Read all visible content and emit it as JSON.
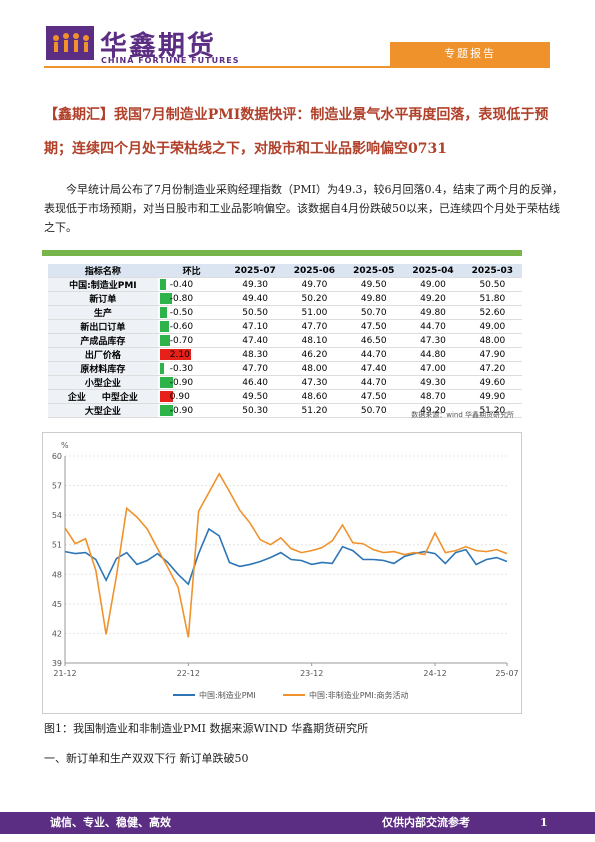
{
  "header": {
    "brand": "华鑫期货",
    "brand_en": "CHINA FORTUNE FUTURES",
    "tag": "专题报告"
  },
  "title": "【鑫期汇】我国7月制造业PMI数据快评：制造业景气水平再度回落，表现低于预期；连续四个月处于荣枯线之下，对股市和工业品影响偏空0731",
  "paragraph": "今早统计局公布了7月份制造业采购经理指数（PMI）为49.3，较6月回落0.4，结束了两个月的反弹，表现低于市场预期，对当日股市和工业品影响偏空。该数据自4月份跌破50以来，已连续四个月处于荣枯线之下。",
  "table": {
    "header": [
      "指标名称",
      "环比",
      "2025-07",
      "2025-06",
      "2025-05",
      "2025-04",
      "2025-03"
    ],
    "group": "企业",
    "rows": [
      [
        "中国:制造业PMI",
        "-0.40",
        "49.30",
        "49.70",
        "49.50",
        "49.00",
        "50.50"
      ],
      [
        "新订单",
        "-0.80",
        "49.40",
        "50.20",
        "49.80",
        "49.20",
        "51.80"
      ],
      [
        "生产",
        "-0.50",
        "50.50",
        "51.00",
        "50.70",
        "49.80",
        "52.60"
      ],
      [
        "新出口订单",
        "-0.60",
        "47.10",
        "47.70",
        "47.50",
        "44.70",
        "49.00"
      ],
      [
        "产成品库存",
        "-0.70",
        "47.40",
        "48.10",
        "46.50",
        "47.30",
        "48.00"
      ],
      [
        "出厂价格",
        "2.10",
        "48.30",
        "46.20",
        "44.70",
        "44.80",
        "47.90"
      ],
      [
        "原材料库存",
        "-0.30",
        "47.70",
        "48.00",
        "47.40",
        "47.00",
        "47.20"
      ],
      [
        "小型企业",
        "-0.90",
        "46.40",
        "47.30",
        "44.70",
        "49.30",
        "49.60"
      ],
      [
        "中型企业",
        "0.90",
        "49.50",
        "48.60",
        "47.50",
        "48.70",
        "49.90"
      ],
      [
        "大型企业",
        "-0.90",
        "50.30",
        "51.20",
        "50.70",
        "49.20",
        "51.20"
      ]
    ],
    "source": "数据来源：wind 华鑫期货研究所"
  },
  "chart": {
    "type": "line",
    "y_unit": "%",
    "x": [
      "21-12",
      null,
      null,
      null,
      null,
      null,
      null,
      null,
      null,
      null,
      null,
      null,
      "22-12",
      null,
      null,
      null,
      null,
      null,
      null,
      null,
      null,
      null,
      null,
      null,
      "23-12",
      null,
      null,
      null,
      null,
      null,
      null,
      null,
      null,
      null,
      null,
      null,
      "24-12",
      null,
      null,
      null,
      null,
      null,
      null,
      "25-07"
    ],
    "ylim": [
      39,
      60
    ],
    "yticks": [
      39,
      42,
      45,
      48,
      51,
      54,
      57,
      60
    ],
    "series": [
      {
        "name": "中国:制造业PMI",
        "color": "#2e75b6",
        "values": [
          50.3,
          50.1,
          50.2,
          49.5,
          47.4,
          49.6,
          50.2,
          49.0,
          49.4,
          50.1,
          49.2,
          48.0,
          47.0,
          50.1,
          52.6,
          51.9,
          49.2,
          48.8,
          49.0,
          49.3,
          49.7,
          50.2,
          49.5,
          49.4,
          49.0,
          49.2,
          49.1,
          50.8,
          50.4,
          49.5,
          49.5,
          49.4,
          49.1,
          49.8,
          50.1,
          50.3,
          50.1,
          49.1,
          50.2,
          50.5,
          49.0,
          49.5,
          49.7,
          49.3
        ]
      },
      {
        "name": "中国:非制造业PMI:商务活动",
        "color": "#f0922b",
        "values": [
          52.7,
          51.1,
          51.6,
          48.4,
          41.9,
          47.8,
          54.7,
          53.8,
          52.6,
          50.6,
          48.7,
          46.7,
          41.6,
          54.4,
          56.3,
          58.2,
          56.4,
          54.5,
          53.2,
          51.5,
          51.0,
          51.7,
          50.6,
          50.2,
          50.4,
          50.7,
          51.4,
          53.0,
          51.2,
          51.1,
          50.5,
          50.2,
          50.3,
          50.0,
          50.2,
          50.0,
          52.2,
          50.2,
          50.4,
          50.8,
          50.4,
          50.3,
          50.5,
          50.1
        ]
      }
    ]
  },
  "caption": "图1：我国制造业和非制造业PMI 数据来源WIND 华鑫期货研究所",
  "section": "一、新订单和生产双双下行  新订单跌破50",
  "footer": {
    "left": "诚信、专业、稳健、高效",
    "right": "仅供内部交流参考",
    "page": "1"
  }
}
